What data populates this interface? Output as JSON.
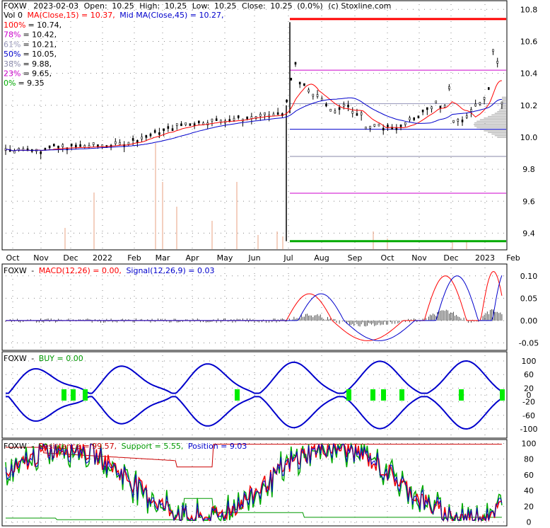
{
  "header": {
    "symbol": "FOXW",
    "date": "2023-02-03",
    "open_label": "Open:",
    "open": "10.25",
    "high_label": "High:",
    "high": "10.25",
    "low_label": "Low:",
    "low": "10.25",
    "close_label": "Close:",
    "close": "10.25",
    "change": "(0.0%)",
    "source": "(c) Stoxline.com"
  },
  "ma_line": {
    "vol": "Vol 0",
    "ma15": "MA(Close,15) = 10.37,",
    "ma45": "Mid MA(Close,45) = 10.27,"
  },
  "fib_levels": [
    {
      "pct": "100%",
      "value": "= 10.74,",
      "color": "#ff0000",
      "level": 10.74
    },
    {
      "pct": "78%",
      "value": "= 10.42,",
      "color": "#cc00cc",
      "level": 10.42
    },
    {
      "pct": "61%",
      "value": "= 10.21,",
      "color": "#9999bb",
      "level": 10.21
    },
    {
      "pct": "50%",
      "value": "= 10.05,",
      "color": "#0000cc",
      "level": 10.05
    },
    {
      "pct": "38%",
      "value": "= 9.88,",
      "color": "#8888aa",
      "level": 9.88
    },
    {
      "pct": "23%",
      "value": "= 9.65,",
      "color": "#cc00cc",
      "level": 9.65
    },
    {
      "pct": "0%",
      "value": "= 9.35",
      "color": "#00aa00",
      "level": 9.35
    }
  ],
  "months": [
    "Oct",
    "Nov",
    "Dec",
    "2022",
    "Feb",
    "Mar",
    "Apr",
    "May",
    "Jun",
    "Jul",
    "Aug",
    "Sep",
    "Oct",
    "Nov",
    "Dec",
    "2023",
    "Feb"
  ],
  "macd_panel": {
    "symbol": "FOXW",
    "macd": "MACD(12,26) = 0.00,",
    "signal": "Signal(12,26,9) = 0.03"
  },
  "buy_panel": {
    "symbol": "FOXW",
    "buy": "BUY = 0.00"
  },
  "rsp_panel": {
    "symbol": "FOXW",
    "resistance": "Resistance = 99.57,",
    "support": "Support = 5.55,",
    "position": "Position = 9.03"
  },
  "colors": {
    "ma15": "#ff0000",
    "ma45": "#0000cc",
    "macd": "#ff0000",
    "signal": "#0000cc",
    "buy": "#0000cc",
    "buy_marker": "#00ee00",
    "resistance": "#cc0000",
    "support": "#009900",
    "position": "#0000cc"
  },
  "chart_data": [
    {
      "type": "candlestick",
      "title": "FOXW 2023-02-03",
      "y_ticks": [
        9.4,
        9.6,
        9.8,
        10.0,
        10.2,
        10.4,
        10.6,
        10.8
      ],
      "ylim": [
        9.3,
        10.85
      ],
      "x_range": [
        "2021-10",
        "2023-02"
      ],
      "series": [
        {
          "name": "MA(Close,15)",
          "last": 10.37
        },
        {
          "name": "Mid MA(Close,45)",
          "last": 10.27
        }
      ],
      "ohlc_last": {
        "open": 10.25,
        "high": 10.25,
        "low": 10.25,
        "close": 10.25
      }
    },
    {
      "type": "line",
      "title": "MACD(12,26)",
      "y_ticks": [
        0.1,
        0.05,
        0.0,
        -0.05
      ],
      "ylim": [
        -0.065,
        0.125
      ],
      "series": [
        {
          "name": "MACD(12,26)",
          "last": 0.0
        },
        {
          "name": "Signal(12,26,9)",
          "last": 0.03
        }
      ]
    },
    {
      "type": "line",
      "title": "BUY",
      "y_ticks": [
        100,
        60,
        20,
        0,
        -20,
        -60,
        -100
      ],
      "ylim": [
        -125,
        125
      ],
      "series": [
        {
          "name": "BUY",
          "last": 0.0
        }
      ]
    },
    {
      "type": "line",
      "title": "Resistance / Support / Position",
      "y_ticks": [
        100,
        80,
        60,
        40,
        20,
        0
      ],
      "ylim": [
        -4,
        104
      ],
      "series": [
        {
          "name": "Resistance",
          "last": 99.57
        },
        {
          "name": "Support",
          "last": 5.55
        },
        {
          "name": "Position",
          "last": 9.03
        }
      ]
    }
  ]
}
